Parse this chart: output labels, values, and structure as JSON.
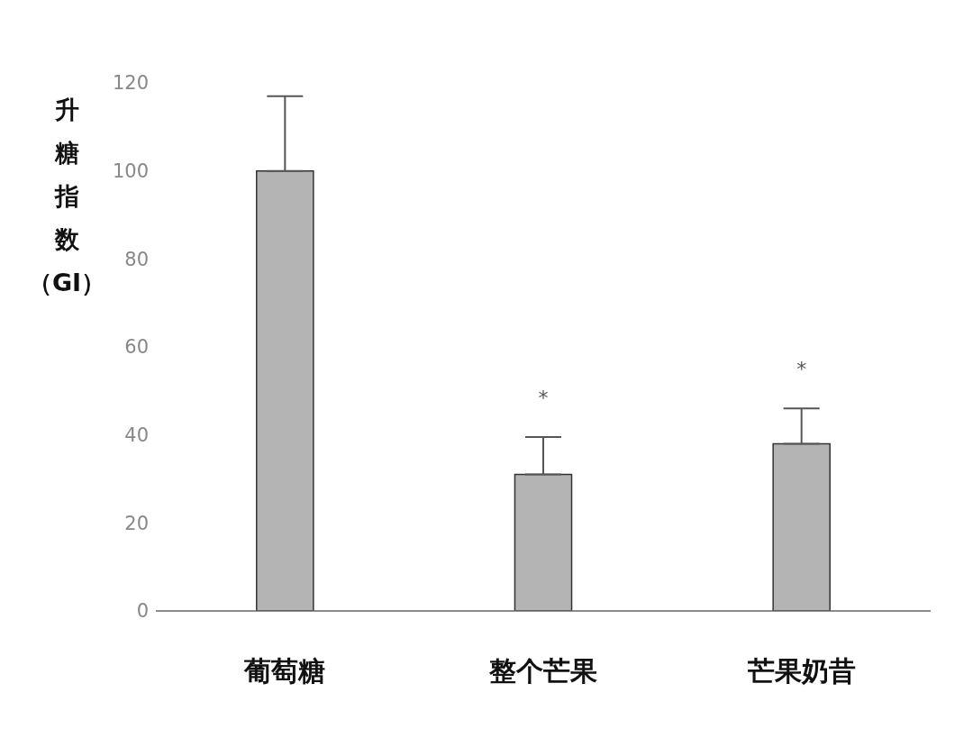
{
  "chart_data": {
    "type": "bar",
    "ylabel": "升糖指数（GI）",
    "categories": [
      "葡萄糖",
      "整个芒果",
      "芒果奶昔"
    ],
    "values": [
      100,
      31,
      38
    ],
    "errors": [
      [
        100,
        117
      ],
      [
        31,
        39.5
      ],
      [
        38,
        46
      ]
    ],
    "color": "#b4b4b4",
    "ylim": [
      0,
      120
    ],
    "yticks": [
      0,
      20,
      40,
      60,
      80,
      100,
      120
    ],
    "grid": false,
    "legend": false,
    "annotations": [
      "*",
      "*"
    ]
  }
}
